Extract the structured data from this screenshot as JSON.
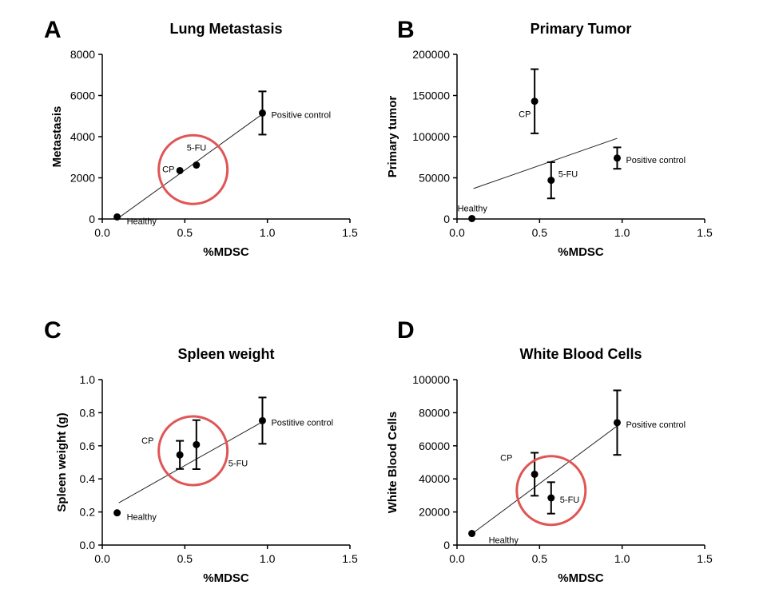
{
  "chart_data": [
    {
      "panel": "A",
      "type": "scatter",
      "title": "Lung Metastasis",
      "xlabel": "%MDSC",
      "ylabel": "Metastasis",
      "xlim": [
        0,
        1.5
      ],
      "ylim": [
        0,
        8000
      ],
      "x_ticks": [
        "0.0",
        "0.5",
        "1.0",
        "1.5"
      ],
      "y_ticks": [
        "0",
        "2000",
        "4000",
        "6000",
        "8000"
      ],
      "points": [
        {
          "label": "Healthy",
          "x": 0.09,
          "y": 100,
          "err": 0
        },
        {
          "label": "CP",
          "x": 0.47,
          "y": 2350,
          "err": 0
        },
        {
          "label": "5-FU",
          "x": 0.57,
          "y": 2620,
          "err": 0
        },
        {
          "label": "Positive control",
          "x": 0.97,
          "y": 5150,
          "err": 1050
        }
      ],
      "fit_line": {
        "x": [
          0.1,
          0.97
        ],
        "y": [
          60,
          5100
        ]
      },
      "highlight": {
        "x": 0.55,
        "y": 2400,
        "note": "red circle"
      }
    },
    {
      "panel": "B",
      "type": "scatter",
      "title": "Primary Tumor",
      "xlabel": "%MDSC",
      "ylabel": "Primary tumor",
      "xlim": [
        0,
        1.5
      ],
      "ylim": [
        0,
        200000
      ],
      "x_ticks": [
        "0.0",
        "0.5",
        "1.0",
        "1.5"
      ],
      "y_ticks": [
        "0",
        "50000",
        "100000",
        "150000",
        "200000"
      ],
      "points": [
        {
          "label": "Healthy",
          "x": 0.09,
          "y": 500,
          "err": 0
        },
        {
          "label": "CP",
          "x": 0.47,
          "y": 143000,
          "err": 39000
        },
        {
          "label": "5-FU",
          "x": 0.57,
          "y": 47000,
          "err": 22000
        },
        {
          "label": "Positive control",
          "x": 0.97,
          "y": 74000,
          "err": 13000
        }
      ],
      "fit_line": {
        "x": [
          0.1,
          0.97
        ],
        "y": [
          37000,
          98000
        ]
      }
    },
    {
      "panel": "C",
      "type": "scatter",
      "title": "Spleen weight",
      "xlabel": "%MDSC",
      "ylabel": "Spleen weight (g)",
      "xlim": [
        0,
        1.5
      ],
      "ylim": [
        0,
        1.0
      ],
      "x_ticks": [
        "0.0",
        "0.5",
        "1.0",
        "1.5"
      ],
      "y_ticks": [
        "0.0",
        "0.2",
        "0.4",
        "0.6",
        "0.8",
        "1.0"
      ],
      "points": [
        {
          "label": "Healthy",
          "x": 0.09,
          "y": 0.195,
          "err": 0
        },
        {
          "label": "CP",
          "x": 0.47,
          "y": 0.545,
          "err": 0.085
        },
        {
          "label": "5-FU",
          "x": 0.57,
          "y": 0.607,
          "err": 0.148
        },
        {
          "label": "Postitive control",
          "x": 0.97,
          "y": 0.752,
          "err": 0.14
        }
      ],
      "fit_line": {
        "x": [
          0.1,
          0.97
        ],
        "y": [
          0.255,
          0.745
        ]
      },
      "highlight": {
        "x": 0.55,
        "y": 0.57,
        "note": "red circle"
      }
    },
    {
      "panel": "D",
      "type": "scatter",
      "title": "White Blood Cells",
      "xlabel": "%MDSC",
      "ylabel": "White Blood Cells",
      "xlim": [
        0,
        1.5
      ],
      "ylim": [
        0,
        100000
      ],
      "x_ticks": [
        "0.0",
        "0.5",
        "1.0",
        "1.5"
      ],
      "y_ticks": [
        "0",
        "20000",
        "40000",
        "60000",
        "80000",
        "100000"
      ],
      "points": [
        {
          "label": "Healthy",
          "x": 0.09,
          "y": 7000,
          "err": 0
        },
        {
          "label": "CP",
          "x": 0.47,
          "y": 42800,
          "err": 13000
        },
        {
          "label": "5-FU",
          "x": 0.57,
          "y": 28500,
          "err": 9500
        },
        {
          "label": "Positive control",
          "x": 0.97,
          "y": 74000,
          "err": 19500
        }
      ],
      "fit_line": {
        "x": [
          0.1,
          0.97
        ],
        "y": [
          7500,
          72000
        ]
      },
      "highlight": {
        "x": 0.57,
        "y": 33000,
        "note": "red circle"
      }
    }
  ]
}
